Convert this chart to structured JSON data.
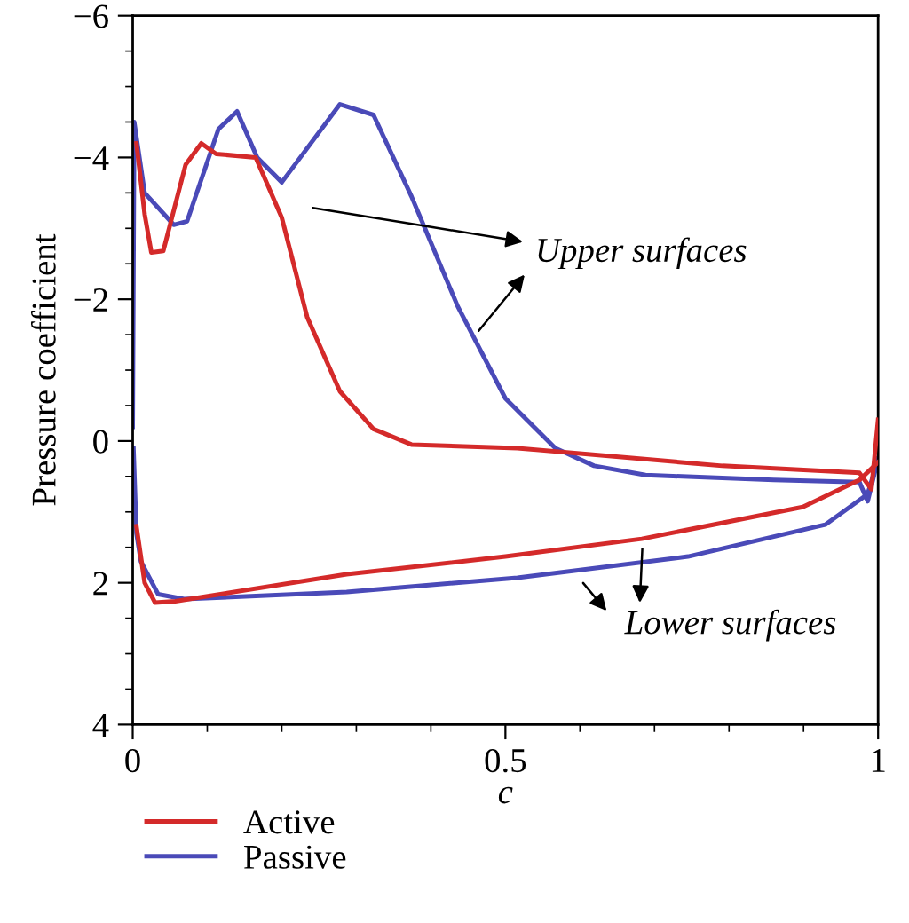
{
  "chart_data": {
    "type": "line",
    "xlabel": "c",
    "ylabel": "Pressure coefficient",
    "xlim": [
      0,
      1
    ],
    "xticks": [
      0,
      0.5,
      1
    ],
    "ylim": [
      4,
      -6
    ],
    "yticks": [
      {
        "value": -6,
        "label": "−6"
      },
      {
        "value": -4,
        "label": "−4"
      },
      {
        "value": -2,
        "label": "−2"
      },
      0,
      2,
      4
    ],
    "grid": false,
    "legend": "bottom left",
    "marker": "none",
    "line_style": "solid",
    "annotations": [
      "Upper surfaces",
      "Lower surfaces"
    ],
    "series": [
      {
        "name": "Active",
        "color": "#d42a2a",
        "x": [
          0.005,
          0.016,
          0.025,
          0.041,
          0.071,
          0.092,
          0.112,
          0.165,
          0.2,
          0.234,
          0.278,
          0.323,
          0.374,
          0.516,
          0.791,
          0.975,
          0.991,
          1.0
        ],
        "values": [
          -4.2,
          -3.2,
          -2.66,
          -2.68,
          -3.9,
          -4.2,
          -4.05,
          -4.0,
          -3.15,
          -1.75,
          -0.7,
          -0.17,
          0.05,
          0.1,
          0.35,
          0.45,
          0.68,
          -0.3
        ]
      },
      {
        "color": "#d42a2a",
        "x": [
          0.005,
          0.016,
          0.03,
          0.057,
          0.287,
          0.5,
          0.683,
          0.899,
          0.975,
          1.0
        ],
        "values": [
          1.2,
          2.0,
          2.28,
          2.26,
          1.88,
          1.63,
          1.38,
          0.93,
          0.55,
          0.3
        ]
      },
      {
        "name": "Passive",
        "color": "#4a4ab8",
        "x": [
          0,
          0.002,
          0.016,
          0.055,
          0.073,
          0.115,
          0.14,
          0.167,
          0.2,
          0.278,
          0.323,
          0.374,
          0.436,
          0.5,
          0.567,
          0.619,
          0.688,
          0.86,
          0.975,
          0.986,
          1.0
        ],
        "values": [
          -0.2,
          -4.5,
          -3.5,
          -3.05,
          -3.1,
          -4.4,
          -4.65,
          -4.0,
          -3.65,
          -4.75,
          -4.6,
          -3.45,
          -1.9,
          -0.6,
          0.1,
          0.35,
          0.48,
          0.55,
          0.58,
          0.85,
          0.25
        ]
      },
      {
        "color": "#4a4ab8",
        "x": [
          0.001,
          0.005,
          0.011,
          0.034,
          0.069,
          0.287,
          0.516,
          0.745,
          0.929,
          0.986,
          1.0
        ],
        "values": [
          0.1,
          1.3,
          1.7,
          2.16,
          2.23,
          2.13,
          1.93,
          1.63,
          1.18,
          0.75,
          0.25
        ]
      }
    ]
  }
}
